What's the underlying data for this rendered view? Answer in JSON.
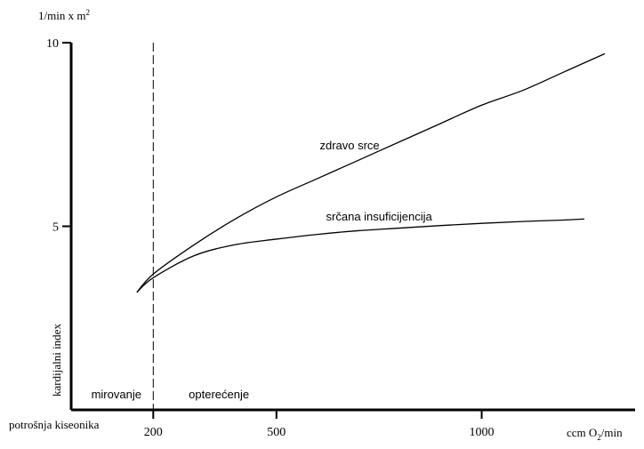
{
  "chart_data": {
    "type": "line",
    "title": "",
    "ylabel_top": "1/min x m",
    "ylabel_top_sup": "2",
    "ylabel": "kardijalni index",
    "xlabel_left": "potrošnja kiseonika",
    "xlabel_right_pre": "ccm O",
    "xlabel_right_sub": "2",
    "xlabel_right_post": "/min",
    "x_ticks": [
      {
        "value": 200,
        "label": "200"
      },
      {
        "value": 500,
        "label": "500"
      },
      {
        "value": 1000,
        "label": "1000"
      }
    ],
    "y_ticks": [
      {
        "value": 5,
        "label": "5"
      },
      {
        "value": 10,
        "label": "10"
      }
    ],
    "xlim": [
      0,
      1300
    ],
    "ylim": [
      0,
      10
    ],
    "rest_line_x": 200,
    "regions": [
      {
        "label": "mirovanje",
        "x": 110
      },
      {
        "label": "opterećenje",
        "x": 360
      }
    ],
    "series": [
      {
        "name": "zdravo srce",
        "x": [
          160,
          200,
          300,
          400,
          500,
          600,
          700,
          800,
          900,
          1000,
          1100,
          1200,
          1300
        ],
        "y": [
          3.2,
          3.7,
          4.5,
          5.2,
          5.8,
          6.3,
          6.8,
          7.3,
          7.8,
          8.3,
          8.7,
          9.2,
          9.7
        ]
      },
      {
        "name": "srčana insuficijencija",
        "x": [
          160,
          200,
          300,
          400,
          500,
          600,
          700,
          800,
          900,
          1000,
          1100,
          1200,
          1250
        ],
        "y": [
          3.2,
          3.6,
          4.2,
          4.5,
          4.65,
          4.78,
          4.88,
          4.95,
          5.02,
          5.08,
          5.13,
          5.17,
          5.2
        ]
      }
    ]
  }
}
